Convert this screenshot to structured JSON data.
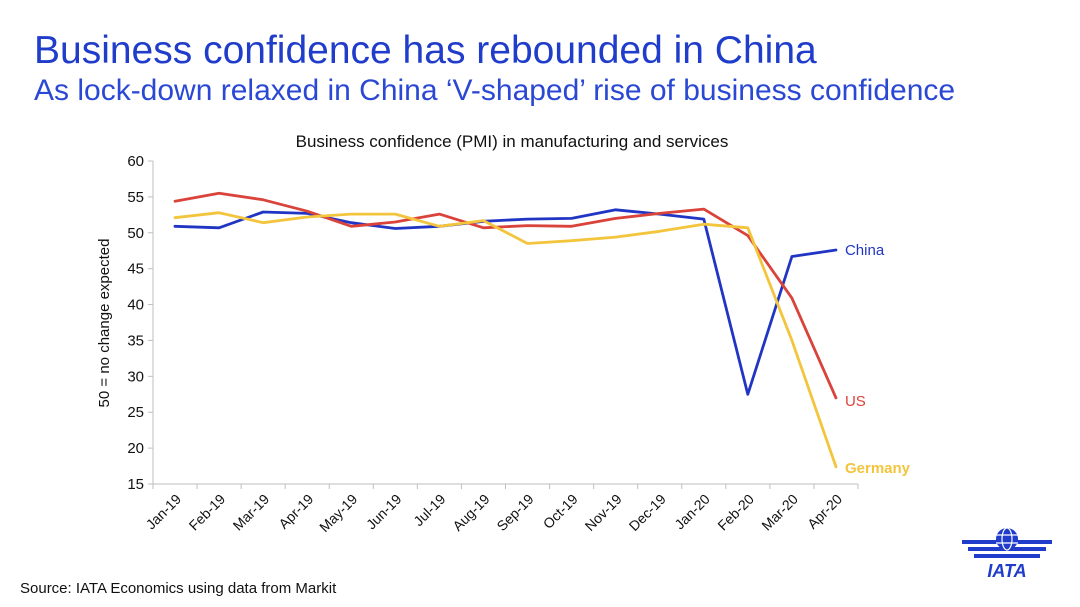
{
  "header": {
    "title": "Business confidence has rebounded in China",
    "subtitle": "As lock-down relaxed in China ‘V-shaped’ rise of business confidence"
  },
  "footer": {
    "source": "Source: IATA Economics using data from Markit",
    "logo_text": "IATA"
  },
  "colors": {
    "title": "#1f3ccb",
    "china": "#2135c4",
    "us": "#d9433a",
    "germany": "#f2c53d"
  },
  "chart_data": {
    "type": "line",
    "title": "Business confidence (PMI) in manufacturing and services",
    "xlabel": "",
    "ylabel": "50 = no change expected",
    "ylim": [
      15,
      60
    ],
    "yticks": [
      15,
      20,
      25,
      30,
      35,
      40,
      45,
      50,
      55,
      60
    ],
    "categories": [
      "Jan-19",
      "Feb-19",
      "Mar-19",
      "Apr-19",
      "May-19",
      "Jun-19",
      "Jul-19",
      "Aug-19",
      "Sep-19",
      "Oct-19",
      "Nov-19",
      "Dec-19",
      "Jan-20",
      "Feb-20",
      "Mar-20",
      "Apr-20"
    ],
    "series": [
      {
        "name": "China",
        "color": "#2135c4",
        "values": [
          50.9,
          50.7,
          52.9,
          52.7,
          51.4,
          50.6,
          50.9,
          51.6,
          51.9,
          52.0,
          53.2,
          52.6,
          51.9,
          27.5,
          46.7,
          47.6
        ]
      },
      {
        "name": "US",
        "color": "#d9433a",
        "values": [
          54.4,
          55.5,
          54.6,
          53.0,
          50.9,
          51.5,
          52.6,
          50.7,
          51.0,
          50.9,
          52.0,
          52.7,
          53.3,
          49.6,
          40.9,
          27.0
        ]
      },
      {
        "name": "Germany",
        "color": "#f2c53d",
        "values": [
          52.1,
          52.8,
          51.4,
          52.2,
          52.6,
          52.6,
          50.9,
          51.7,
          48.5,
          48.9,
          49.4,
          50.2,
          51.2,
          50.7,
          35.0,
          17.4
        ]
      }
    ]
  }
}
